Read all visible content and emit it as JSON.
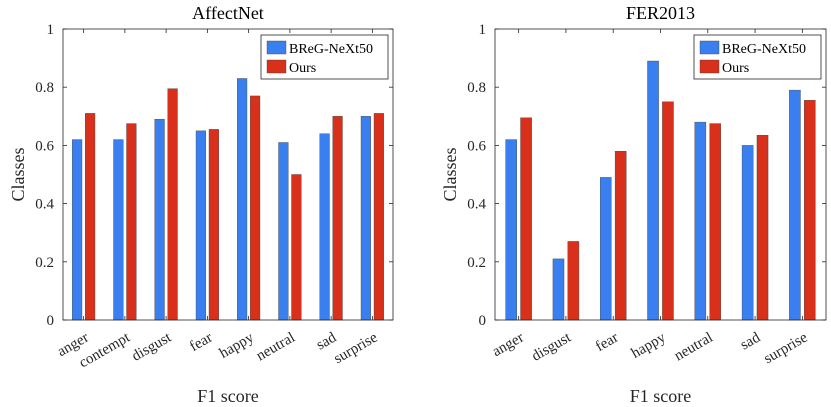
{
  "chart_data": [
    {
      "type": "bar",
      "title": "AffectNet",
      "xlabel": "F1 score",
      "ylabel": "Classes",
      "ylim": [
        0,
        1
      ],
      "yticks": [
        "0",
        "0.2",
        "0.4",
        "0.6",
        "0.8",
        "1"
      ],
      "categories": [
        "anger",
        "contempt",
        "disgust",
        "fear",
        "happy",
        "neutral",
        "sad",
        "surprise"
      ],
      "series": [
        {
          "name": "BReG-NeXt50",
          "color": "#3a7ff0",
          "values": [
            0.62,
            0.62,
            0.69,
            0.65,
            0.83,
            0.61,
            0.64,
            0.7
          ]
        },
        {
          "name": "Ours",
          "color": "#d8301a",
          "values": [
            0.71,
            0.675,
            0.795,
            0.655,
            0.77,
            0.5,
            0.7,
            0.71
          ]
        }
      ],
      "legend": "top-right",
      "grid": false
    },
    {
      "type": "bar",
      "title": "FER2013",
      "xlabel": "F1 score",
      "ylabel": "Classes",
      "ylim": [
        0,
        1
      ],
      "yticks": [
        "0",
        "0.2",
        "0.4",
        "0.6",
        "0.8",
        "1"
      ],
      "categories": [
        "anger",
        "disgust",
        "fear",
        "happy",
        "neutral",
        "sad",
        "surprise"
      ],
      "series": [
        {
          "name": "BReG-NeXt50",
          "color": "#3a7ff0",
          "values": [
            0.62,
            0.21,
            0.49,
            0.89,
            0.68,
            0.6,
            0.79
          ]
        },
        {
          "name": "Ours",
          "color": "#d8301a",
          "values": [
            0.695,
            0.27,
            0.58,
            0.75,
            0.675,
            0.635,
            0.755
          ]
        }
      ],
      "legend": "top-right",
      "grid": false
    }
  ]
}
